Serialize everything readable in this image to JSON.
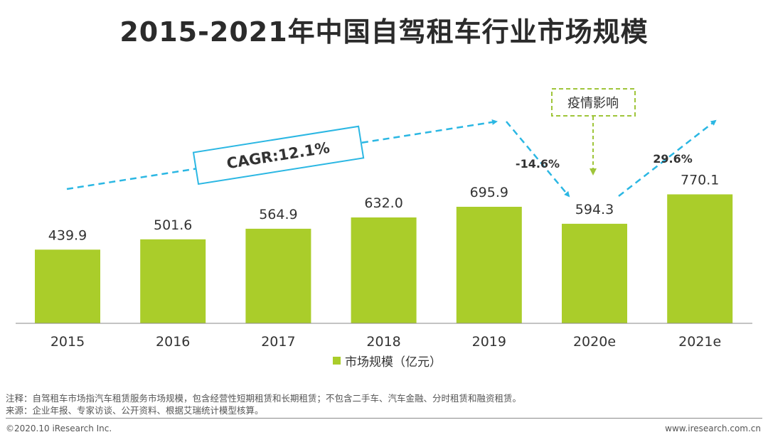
{
  "chart_data": {
    "type": "bar",
    "title": "2015-2021年中国自驾租车行业市场规模",
    "categories": [
      "2015",
      "2016",
      "2017",
      "2018",
      "2019",
      "2020e",
      "2021e"
    ],
    "series": [
      {
        "name": "市场规模（亿元）",
        "values": [
          439.9,
          501.6,
          564.9,
          632.0,
          695.9,
          594.3,
          770.1
        ]
      }
    ],
    "value_labels": [
      "439.9",
      "501.6",
      "564.9",
      "632.0",
      "695.9",
      "594.3",
      "770.1"
    ],
    "ylim": [
      0,
      1000
    ],
    "xlabel": "",
    "ylabel": "",
    "legend_position": "bottom-center",
    "annotations": {
      "cagr": "CAGR:12.1%",
      "growth_2020": "-14.6%",
      "growth_2021": "29.6%",
      "event_box": "疫情影响"
    },
    "colors": {
      "bar": "#aacd2a",
      "arrow": "#2bb7e3",
      "event": "#9fc53a"
    }
  },
  "notes": {
    "note": "注释：自驾租车市场指汽车租赁服务市场规模，包含经营性短期租赁和长期租赁；不包含二手车、汽车金融、分时租赁和融资租赁。",
    "source": "来源：企业年报、专家访谈、公开资料、根据艾瑞统计模型核算。"
  },
  "footer": {
    "copyright": "©2020.10 iResearch Inc.",
    "website": "www.iresearch.com.cn"
  }
}
